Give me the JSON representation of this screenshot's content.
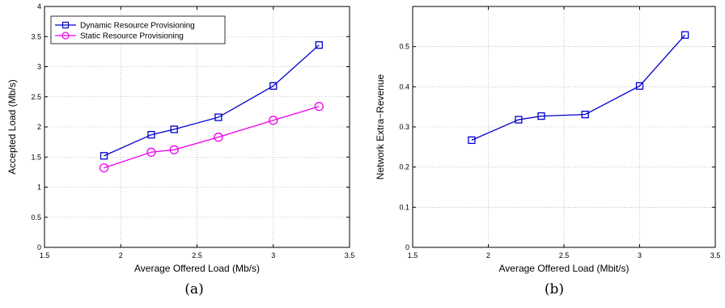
{
  "chart_data": [
    {
      "type": "line",
      "caption": "(a)",
      "xlabel": "Average Offered Load (Mb/s)",
      "ylabel": "Accepted Load (Mb/s)",
      "xlim": [
        1.5,
        3.5
      ],
      "ylim": [
        0,
        4
      ],
      "xticks": [
        "1.5",
        "2",
        "2.5",
        "3",
        "3.5"
      ],
      "yticks": [
        "0",
        "0.5",
        "1",
        "1.5",
        "2",
        "2.5",
        "3",
        "3.5",
        "4"
      ],
      "grid": true,
      "legend_position": "top-left",
      "x": [
        1.89,
        2.2,
        2.35,
        2.64,
        3.0,
        3.3
      ],
      "series": [
        {
          "name": "Dynamic Resource Provisioning",
          "color": "#0000cc",
          "marker": "square",
          "values": [
            1.52,
            1.87,
            1.96,
            2.16,
            2.68,
            3.36
          ]
        },
        {
          "name": "Static Resource Provisioning",
          "color": "#ee00ee",
          "marker": "circle",
          "values": [
            1.32,
            1.58,
            1.62,
            1.83,
            2.11,
            2.34
          ]
        }
      ]
    },
    {
      "type": "line",
      "caption": "(b)",
      "xlabel": "Average Offered Load (Mbit/s)",
      "ylabel": "Network Extra−Revenue",
      "xlim": [
        1.5,
        3.5
      ],
      "ylim": [
        0,
        0.6
      ],
      "xticks": [
        "1.5",
        "2",
        "2.5",
        "3",
        "3.5"
      ],
      "yticks": [
        "0",
        "0.1",
        "0.2",
        "0.3",
        "0.4",
        "0.5"
      ],
      "grid": true,
      "x": [
        1.89,
        2.2,
        2.35,
        2.64,
        3.0,
        3.3
      ],
      "series": [
        {
          "color": "#0000cc",
          "marker": "square",
          "values": [
            0.267,
            0.318,
            0.327,
            0.331,
            0.402,
            0.529
          ]
        }
      ]
    }
  ]
}
